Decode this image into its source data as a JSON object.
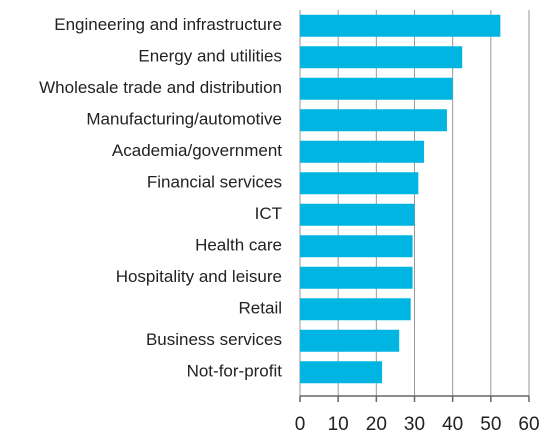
{
  "chart_data": {
    "type": "bar",
    "orientation": "horizontal",
    "categories": [
      "Engineering and infrastructure",
      "Energy and utilities",
      "Wholesale trade and distribution",
      "Manufacturing/automotive",
      "Academia/government",
      "Financial services",
      "ICT",
      "Health care",
      "Hospitality and leisure",
      "Retail",
      "Business services",
      "Not-for-profit"
    ],
    "values": [
      52.5,
      42.5,
      40,
      38.5,
      32.5,
      31,
      30,
      29.5,
      29.5,
      29,
      26,
      21.5
    ],
    "color": "#00b5e2",
    "xlim": [
      0,
      60
    ],
    "xticks": [
      0,
      10,
      20,
      30,
      40,
      50,
      60
    ],
    "grid": true
  }
}
